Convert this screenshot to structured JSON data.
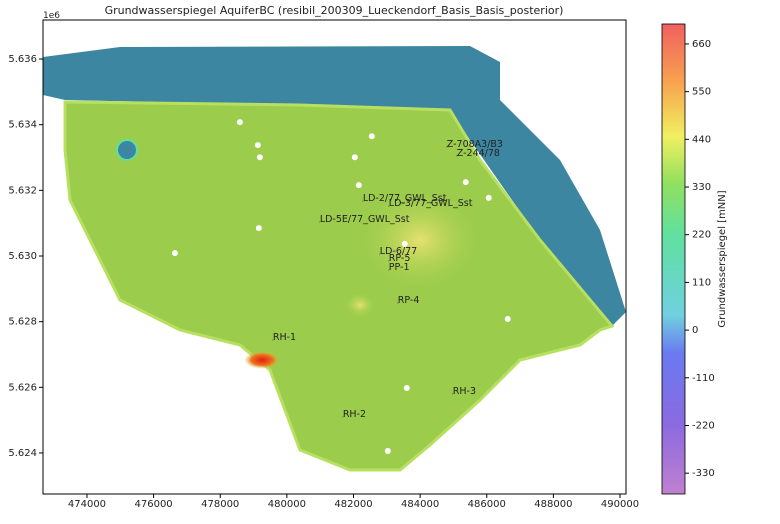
{
  "chart_data": {
    "type": "contour",
    "title": "Grundwasserspiegel AquiferBC (resibil_200309_Lueckendorf_Basis_Basis_posterior)",
    "y_offset_label": "1e6",
    "xlim": [
      472680,
      490180
    ],
    "ylim": [
      5622750,
      5637190
    ],
    "xticks": [
      474000,
      476000,
      478000,
      480000,
      482000,
      484000,
      486000,
      488000,
      490000
    ],
    "yticks": [
      {
        "value": 5624000,
        "label": "5.624"
      },
      {
        "value": 5626000,
        "label": "5.626"
      },
      {
        "value": 5628000,
        "label": "5.628"
      },
      {
        "value": 5630000,
        "label": "5.630"
      },
      {
        "value": 5632000,
        "label": "5.632"
      },
      {
        "value": 5634000,
        "label": "5.634"
      },
      {
        "value": 5636000,
        "label": "5.636"
      }
    ],
    "colorbar": {
      "label": "Grundwasserspiegel [mNN]",
      "lim": [
        -378,
        706
      ],
      "ticks": [
        -330,
        -220,
        -110,
        0,
        110,
        220,
        330,
        440,
        550,
        660
      ]
    },
    "points": {
      "color": "#ffffff",
      "x": [
        478590,
        479130,
        479190,
        482550,
        482040,
        482160,
        485370,
        486060,
        479160,
        476640,
        483540,
        486630,
        483600,
        483030
      ],
      "y": [
        5634080,
        5633380,
        5633010,
        5633650,
        5633010,
        5632160,
        5632250,
        5631770,
        5630850,
        5630090,
        5630370,
        5628080,
        5625980,
        5624060
      ]
    },
    "annotations": [
      {
        "text": "Z-708A3/B3",
        "x": 484800,
        "y": 5633320
      },
      {
        "text": "Z-244/78",
        "x": 485100,
        "y": 5633050
      },
      {
        "text": "LD-2/77_GWL_Sst",
        "x": 482280,
        "y": 5631670
      },
      {
        "text": "LD-3/77_GWL_Sst",
        "x": 483060,
        "y": 5631520
      },
      {
        "text": "LD-5E/77_GWL_Sst",
        "x": 480990,
        "y": 5631040
      },
      {
        "text": "LD-6/77",
        "x": 482790,
        "y": 5630060
      },
      {
        "text": "RP-5",
        "x": 483060,
        "y": 5629850
      },
      {
        "text": "PP-1",
        "x": 483060,
        "y": 5629570
      },
      {
        "text": "RP-4",
        "x": 483330,
        "y": 5628570
      },
      {
        "text": "RH-1",
        "x": 479580,
        "y": 5627440
      },
      {
        "text": "RH-3",
        "x": 484980,
        "y": 5625800
      },
      {
        "text": "RH-2",
        "x": 481680,
        "y": 5625100
      }
    ]
  }
}
